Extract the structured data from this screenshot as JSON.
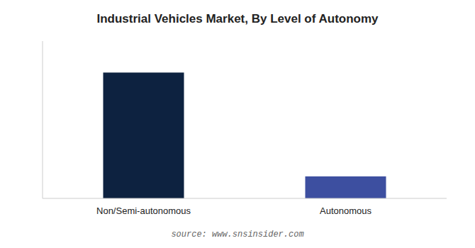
{
  "chart_data": {
    "type": "bar",
    "title": "Industrial Vehicles Market, By Level of Autonomy",
    "categories": [
      "Non/Semi-autonomous",
      "Autonomous"
    ],
    "values": [
      80,
      14
    ],
    "colors": [
      "#0d2240",
      "#3d4fa0"
    ],
    "ylim": [
      0,
      100
    ],
    "grid": false,
    "tick_labels": "x",
    "source": "source: www.snsinsider.com"
  }
}
